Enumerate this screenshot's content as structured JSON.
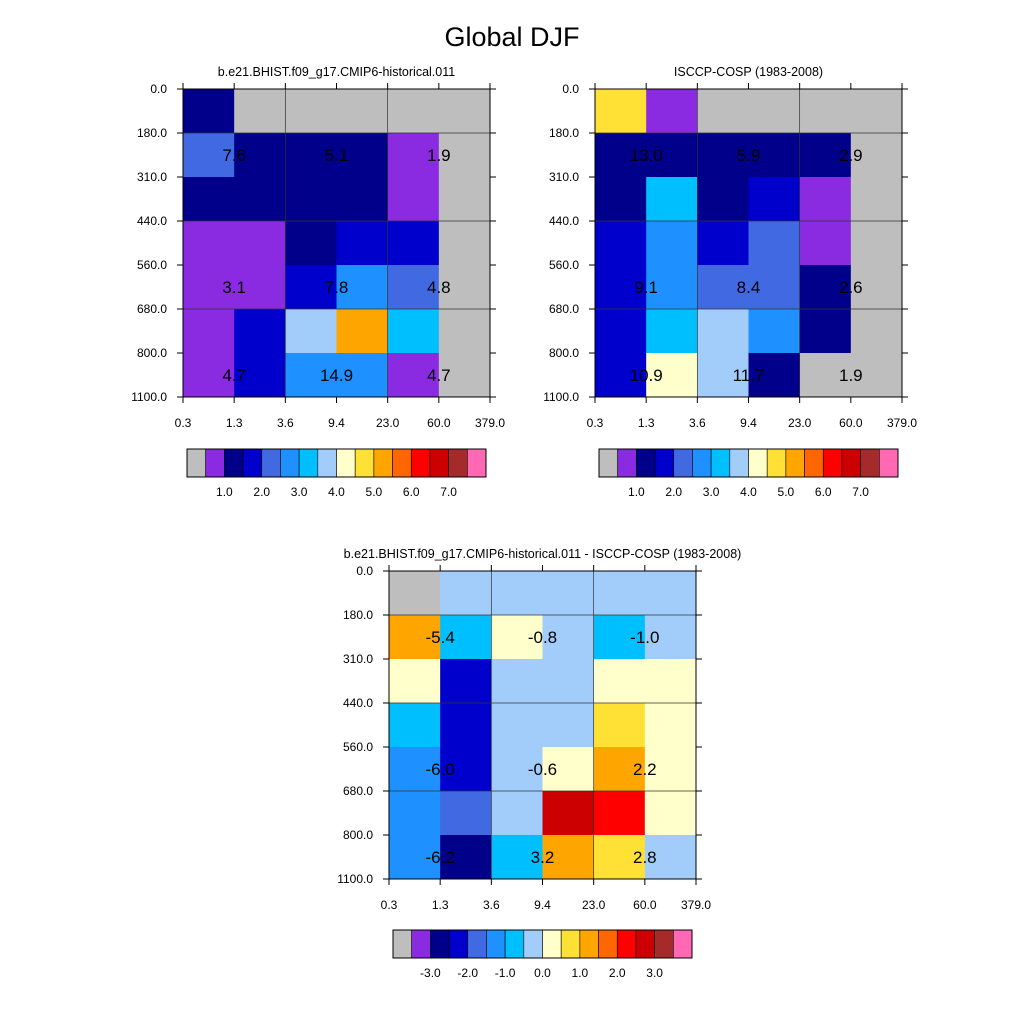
{
  "title": "Global DJF",
  "chart_data": [
    {
      "type": "heatmap",
      "title": "b.e21.BHIST.f09_g17.CMIP6-historical.011",
      "x_tick_labels": [
        "0.3",
        "1.3",
        "3.6",
        "9.4",
        "23.0",
        "60.0",
        "379.0"
      ],
      "y_tick_labels": [
        "0.0",
        "180.0",
        "310.0",
        "440.0",
        "560.0",
        "680.0",
        "800.0",
        "1100.0"
      ],
      "cells": [
        [
          "#00008b",
          "#bebebe",
          "#bebebe",
          "#bebebe",
          "#bebebe",
          "#bebebe"
        ],
        [
          "#4169e1",
          "#00008b",
          "#00008b",
          "#00008b",
          "#8a2be2",
          "#bebebe"
        ],
        [
          "#00008b",
          "#00008b",
          "#00008b",
          "#00008b",
          "#8a2be2",
          "#bebebe"
        ],
        [
          "#8a2be2",
          "#8a2be2",
          "#00008b",
          "#0000cd",
          "#0000cd",
          "#bebebe"
        ],
        [
          "#8a2be2",
          "#8a2be2",
          "#0000cd",
          "#1e90ff",
          "#4169e1",
          "#bebebe"
        ],
        [
          "#8a2be2",
          "#0000cd",
          "#a2cdfa",
          "#ffa500",
          "#00bfff",
          "#bebebe"
        ],
        [
          "#8a2be2",
          "#0000cd",
          "#1e90ff",
          "#1e90ff",
          "#8a2be2",
          "#bebebe"
        ]
      ],
      "annotations": [
        {
          "text": "7.6",
          "row": 1,
          "col": 1
        },
        {
          "text": "5.1",
          "row": 1,
          "col": 3
        },
        {
          "text": "1.9",
          "row": 1,
          "col": 5
        },
        {
          "text": "3.1",
          "row": 4,
          "col": 1
        },
        {
          "text": "7.8",
          "row": 4,
          "col": 3
        },
        {
          "text": "4.8",
          "row": 4,
          "col": 5
        },
        {
          "text": "4.7",
          "row": 6,
          "col": 1
        },
        {
          "text": "14.9",
          "row": 6,
          "col": 3
        },
        {
          "text": "4.7",
          "row": 6,
          "col": 5
        }
      ],
      "colorbar": {
        "colors": [
          "#bebebe",
          "#8a2be2",
          "#00008b",
          "#0000cd",
          "#4169e1",
          "#1e90ff",
          "#00bfff",
          "#a2cdfa",
          "#ffffcc",
          "#ffe135",
          "#ffa500",
          "#ff6600",
          "#ff0000",
          "#cc0000",
          "#a52a2a",
          "#ff69b4"
        ],
        "labels": [
          "1.0",
          "2.0",
          "3.0",
          "4.0",
          "5.0",
          "6.0",
          "7.0"
        ]
      }
    },
    {
      "type": "heatmap",
      "title": "ISCCP-COSP (1983-2008)",
      "x_tick_labels": [
        "0.3",
        "1.3",
        "3.6",
        "9.4",
        "23.0",
        "60.0",
        "379.0"
      ],
      "y_tick_labels": [
        "0.0",
        "180.0",
        "310.0",
        "440.0",
        "560.0",
        "680.0",
        "800.0",
        "1100.0"
      ],
      "cells": [
        [
          "#ffe135",
          "#8a2be2",
          "#bebebe",
          "#bebebe",
          "#bebebe",
          "#bebebe"
        ],
        [
          "#00008b",
          "#00008b",
          "#00008b",
          "#00008b",
          "#00008b",
          "#bebebe"
        ],
        [
          "#00008b",
          "#00bfff",
          "#00008b",
          "#0000cd",
          "#8a2be2",
          "#bebebe"
        ],
        [
          "#0000cd",
          "#1e90ff",
          "#0000cd",
          "#4169e1",
          "#8a2be2",
          "#bebebe"
        ],
        [
          "#0000cd",
          "#1e90ff",
          "#4169e1",
          "#4169e1",
          "#00008b",
          "#bebebe"
        ],
        [
          "#0000cd",
          "#00bfff",
          "#a2cdfa",
          "#1e90ff",
          "#00008b",
          "#bebebe"
        ],
        [
          "#0000cd",
          "#ffffcc",
          "#a2cdfa",
          "#00008b",
          "#bebebe",
          "#bebebe"
        ]
      ],
      "annotations": [
        {
          "text": "13.0",
          "row": 1,
          "col": 1
        },
        {
          "text": "5.9",
          "row": 1,
          "col": 3
        },
        {
          "text": "2.9",
          "row": 1,
          "col": 5
        },
        {
          "text": "9.1",
          "row": 4,
          "col": 1
        },
        {
          "text": "8.4",
          "row": 4,
          "col": 3
        },
        {
          "text": "2.6",
          "row": 4,
          "col": 5
        },
        {
          "text": "10.9",
          "row": 6,
          "col": 1
        },
        {
          "text": "11.7",
          "row": 6,
          "col": 3
        },
        {
          "text": "1.9",
          "row": 6,
          "col": 5
        }
      ],
      "colorbar": {
        "colors": [
          "#bebebe",
          "#8a2be2",
          "#00008b",
          "#0000cd",
          "#4169e1",
          "#1e90ff",
          "#00bfff",
          "#a2cdfa",
          "#ffffcc",
          "#ffe135",
          "#ffa500",
          "#ff6600",
          "#ff0000",
          "#cc0000",
          "#a52a2a",
          "#ff69b4"
        ],
        "labels": [
          "1.0",
          "2.0",
          "3.0",
          "4.0",
          "5.0",
          "6.0",
          "7.0"
        ]
      }
    },
    {
      "type": "heatmap",
      "title": "b.e21.BHIST.f09_g17.CMIP6-historical.011 - ISCCP-COSP (1983-2008)",
      "x_tick_labels": [
        "0.3",
        "1.3",
        "3.6",
        "9.4",
        "23.0",
        "60.0",
        "379.0"
      ],
      "y_tick_labels": [
        "0.0",
        "180.0",
        "310.0",
        "440.0",
        "560.0",
        "680.0",
        "800.0",
        "1100.0"
      ],
      "cells": [
        [
          "#bebebe",
          "#a2cdfa",
          "#a2cdfa",
          "#a2cdfa",
          "#a2cdfa",
          "#a2cdfa"
        ],
        [
          "#ffa500",
          "#00bfff",
          "#ffffcc",
          "#a2cdfa",
          "#00bfff",
          "#a2cdfa"
        ],
        [
          "#ffffcc",
          "#0000cd",
          "#a2cdfa",
          "#a2cdfa",
          "#ffffcc",
          "#ffffcc"
        ],
        [
          "#00bfff",
          "#0000cd",
          "#a2cdfa",
          "#a2cdfa",
          "#ffe135",
          "#ffffcc"
        ],
        [
          "#1e90ff",
          "#0000cd",
          "#a2cdfa",
          "#ffffcc",
          "#ffa500",
          "#ffffcc"
        ],
        [
          "#1e90ff",
          "#4169e1",
          "#a2cdfa",
          "#cc0000",
          "#ff0000",
          "#ffffcc"
        ],
        [
          "#1e90ff",
          "#00008b",
          "#00bfff",
          "#ffa500",
          "#ffe135",
          "#a2cdfa"
        ]
      ],
      "annotations": [
        {
          "text": "-5.4",
          "row": 1,
          "col": 1
        },
        {
          "text": "-0.8",
          "row": 1,
          "col": 3
        },
        {
          "text": "-1.0",
          "row": 1,
          "col": 5
        },
        {
          "text": "-6.0",
          "row": 4,
          "col": 1
        },
        {
          "text": "-0.6",
          "row": 4,
          "col": 3
        },
        {
          "text": "2.2",
          "row": 4,
          "col": 5
        },
        {
          "text": "-6.2",
          "row": 6,
          "col": 1
        },
        {
          "text": "3.2",
          "row": 6,
          "col": 3
        },
        {
          "text": "2.8",
          "row": 6,
          "col": 5
        }
      ],
      "colorbar": {
        "colors": [
          "#bebebe",
          "#8a2be2",
          "#00008b",
          "#0000cd",
          "#4169e1",
          "#1e90ff",
          "#00bfff",
          "#a2cdfa",
          "#ffffcc",
          "#ffe135",
          "#ffa500",
          "#ff6600",
          "#ff0000",
          "#cc0000",
          "#a52a2a",
          "#ff69b4"
        ],
        "labels": [
          "-3.0",
          "-2.0",
          "-1.0",
          "0.0",
          "1.0",
          "2.0",
          "3.0"
        ]
      }
    }
  ]
}
